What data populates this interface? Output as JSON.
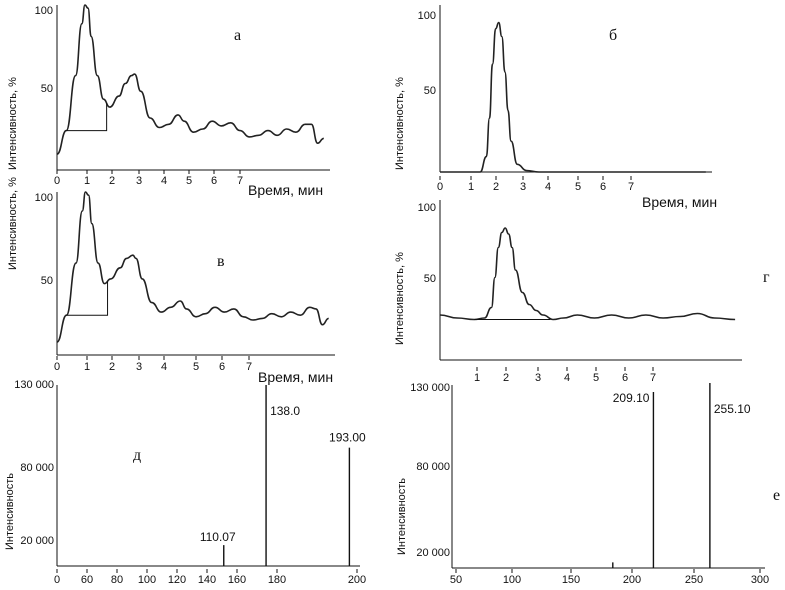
{
  "chart_data": [
    {
      "id": "a",
      "type": "line",
      "panel_label": "а",
      "ylabel": "Интенсивность, %",
      "xlabel": "Время,  мин",
      "xlim": [
        0,
        8.8
      ],
      "ylim": [
        0,
        100
      ],
      "xticks": [
        "0",
        "1",
        "2",
        "3",
        "4",
        "5",
        "6",
        "7"
      ],
      "yticks": [
        "50",
        "100"
      ],
      "x": [
        0,
        0.3,
        0.6,
        0.8,
        0.9,
        1.0,
        1.1,
        1.3,
        1.5,
        1.7,
        2.0,
        2.2,
        2.4,
        2.5,
        2.7,
        3.0,
        3.3,
        3.6,
        3.9,
        4.1,
        4.4,
        4.7,
        5.0,
        5.3,
        5.6,
        5.9,
        6.2,
        6.5,
        6.8,
        7.1,
        7.4,
        7.7,
        8.0,
        8.2,
        8.4,
        8.6
      ],
      "y": [
        5,
        20,
        55,
        88,
        100,
        98,
        80,
        55,
        40,
        35,
        42,
        50,
        55,
        56,
        45,
        28,
        22,
        24,
        30,
        26,
        19,
        21,
        26,
        23,
        25,
        20,
        16,
        17,
        20,
        17,
        21,
        19,
        24,
        24,
        12,
        15
      ],
      "baseline_box": {
        "x_from": 0.3,
        "x_to": 1.6
      }
    },
    {
      "id": "b",
      "type": "line",
      "panel_label": "б",
      "ylabel": "Интенсивность, %",
      "xlabel": "Время,  мин",
      "xlim": [
        0,
        8.8
      ],
      "ylim": [
        0,
        100
      ],
      "xticks": [
        "0",
        "1",
        "2",
        "3",
        "4",
        "5",
        "6",
        "7"
      ],
      "yticks": [
        "50",
        "100"
      ],
      "x": [
        0,
        0.5,
        1.0,
        1.3,
        1.5,
        1.6,
        1.7,
        1.8,
        1.9,
        2.0,
        2.1,
        2.2,
        2.3,
        2.5,
        2.8,
        3.2,
        4.0,
        5.0,
        6.0,
        7.0,
        8.0,
        8.6
      ],
      "y": [
        0,
        0,
        0,
        0,
        10,
        35,
        70,
        93,
        97,
        88,
        65,
        40,
        20,
        5,
        1,
        0,
        0,
        0,
        0,
        0,
        0,
        0
      ]
    },
    {
      "id": "c",
      "type": "line",
      "panel_label": "в",
      "ylabel": "Интенсивность, %",
      "xlabel": "Время,  мин",
      "xlim": [
        0,
        8.8
      ],
      "ylim": [
        0,
        100
      ],
      "xticks": [
        "0",
        "1",
        "2",
        "3",
        "4",
        "5",
        "6",
        "7"
      ],
      "yticks": [
        "50",
        "100"
      ],
      "x": [
        0,
        0.3,
        0.6,
        0.8,
        0.9,
        1.0,
        1.1,
        1.3,
        1.5,
        1.7,
        2.0,
        2.2,
        2.4,
        2.5,
        2.7,
        3.0,
        3.3,
        3.6,
        3.9,
        4.1,
        4.4,
        4.7,
        5.0,
        5.3,
        5.6,
        5.9,
        6.2,
        6.5,
        6.8,
        7.1,
        7.4,
        7.7,
        8.0,
        8.2,
        8.4,
        8.6
      ],
      "y": [
        5,
        22,
        55,
        88,
        100,
        98,
        80,
        55,
        42,
        45,
        52,
        58,
        60,
        58,
        45,
        30,
        24,
        27,
        31,
        26,
        21,
        23,
        27,
        24,
        26,
        21,
        19,
        20,
        23,
        21,
        24,
        22,
        27,
        26,
        16,
        20
      ],
      "baseline_box": {
        "x_from": 0.3,
        "x_to": 1.6
      }
    },
    {
      "id": "d",
      "type": "line",
      "panel_label": "г",
      "ylabel": "Интенсивность, %",
      "xlabel": "",
      "xlim": [
        0,
        8.8
      ],
      "ylim": [
        0,
        100
      ],
      "xticks": [
        "1",
        "2",
        "3",
        "4",
        "5",
        "6",
        "7"
      ],
      "yticks": [
        "50",
        "100"
      ],
      "x": [
        0,
        0.5,
        1.0,
        1.3,
        1.5,
        1.6,
        1.7,
        1.8,
        1.9,
        2.0,
        2.1,
        2.2,
        2.4,
        2.6,
        2.8,
        3.0,
        3.3,
        3.6,
        4.0,
        4.5,
        5.0,
        5.5,
        6.0,
        6.5,
        7.0,
        7.5,
        8.0,
        8.6
      ],
      "y": [
        30,
        28,
        27,
        28,
        35,
        55,
        75,
        85,
        88,
        84,
        75,
        60,
        45,
        37,
        33,
        30,
        27,
        28,
        30,
        28,
        30,
        28,
        30,
        28,
        29,
        31,
        28,
        27
      ],
      "baseline_box": {
        "x_from": 1.0,
        "x_to": 3.2
      }
    },
    {
      "id": "e",
      "type": "bar",
      "panel_label": "д",
      "ylabel": "Интенсивность",
      "xlim": [
        0,
        200
      ],
      "ylim": [
        0,
        130000
      ],
      "xticks": [
        "0",
        "60",
        "80",
        "100",
        "120",
        "140",
        "160",
        "180",
        "200"
      ],
      "yticks": [
        "20 000",
        "80 000",
        "130 000"
      ],
      "peaks": [
        {
          "mz": 110.07,
          "intensity": 15000,
          "label": "110.07"
        },
        {
          "mz": 138.0,
          "intensity": 130000,
          "label": "138.0"
        },
        {
          "mz": 193.0,
          "intensity": 85000,
          "label": "193.00"
        }
      ]
    },
    {
      "id": "f",
      "type": "bar",
      "panel_label": "е",
      "ylabel": "Интенсивность",
      "xlim": [
        45,
        300
      ],
      "ylim": [
        0,
        130000
      ],
      "xticks": [
        "50",
        "100",
        "150",
        "200",
        "250",
        "300"
      ],
      "yticks": [
        "20 000",
        "80 000",
        "130 000"
      ],
      "peaks": [
        {
          "mz": 176.0,
          "intensity": 4000,
          "label": ""
        },
        {
          "mz": 209.1,
          "intensity": 125000,
          "label": "209.10"
        },
        {
          "mz": 255.1,
          "intensity": 135000,
          "label": "255.10"
        }
      ]
    }
  ]
}
